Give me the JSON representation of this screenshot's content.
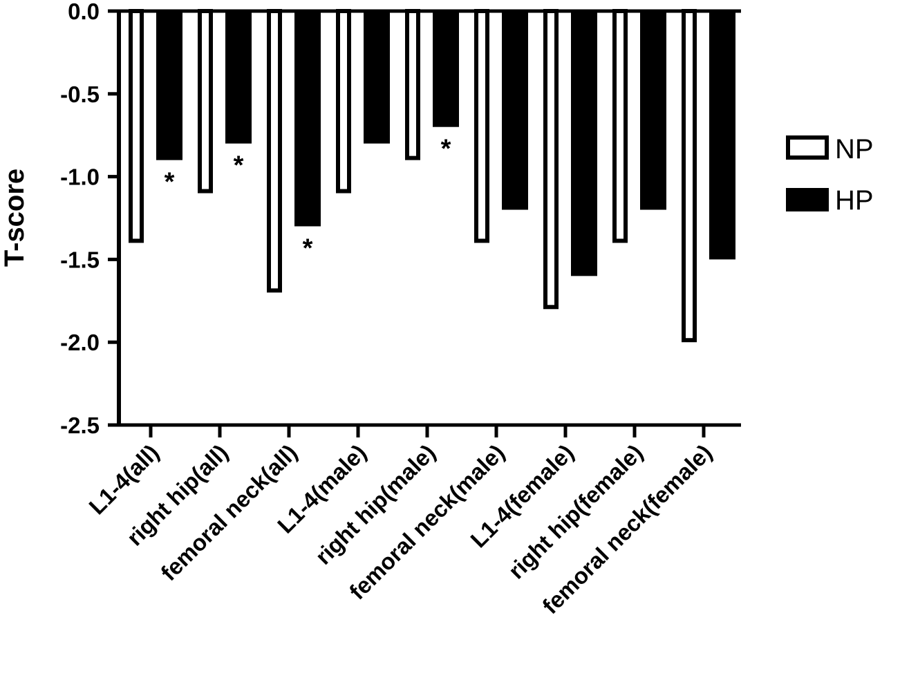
{
  "chart_data": {
    "type": "bar",
    "ylabel": "T-score",
    "ylim": [
      -2.5,
      0.0
    ],
    "yticks": [
      "0.0",
      "-0.5",
      "-1.0",
      "-1.5",
      "-2.0",
      "-2.5"
    ],
    "categories": [
      "L1-4(all)",
      "right hip(all)",
      "femoral neck(all)",
      "L1-4(male)",
      "right hip(male)",
      "femoral neck(male)",
      "L1-4(female)",
      "right hip(female)",
      "femoral neck(female)"
    ],
    "series": [
      {
        "name": "NP",
        "values": [
          -1.4,
          -1.1,
          -1.7,
          -1.1,
          -0.9,
          -1.4,
          -1.8,
          -1.4,
          -2.0
        ],
        "fill": "#ffffff",
        "stroke": "#000000"
      },
      {
        "name": "HP",
        "values": [
          -0.9,
          -0.8,
          -1.3,
          -0.8,
          -0.7,
          -1.2,
          -1.6,
          -1.2,
          -1.5
        ],
        "fill": "#000000",
        "stroke": "#000000"
      }
    ],
    "significance": {
      "marker": "*",
      "series": "HP",
      "categories": [
        "L1-4(all)",
        "right hip(all)",
        "femoral neck(all)",
        "right hip(male)"
      ]
    },
    "legend_position": "right"
  }
}
